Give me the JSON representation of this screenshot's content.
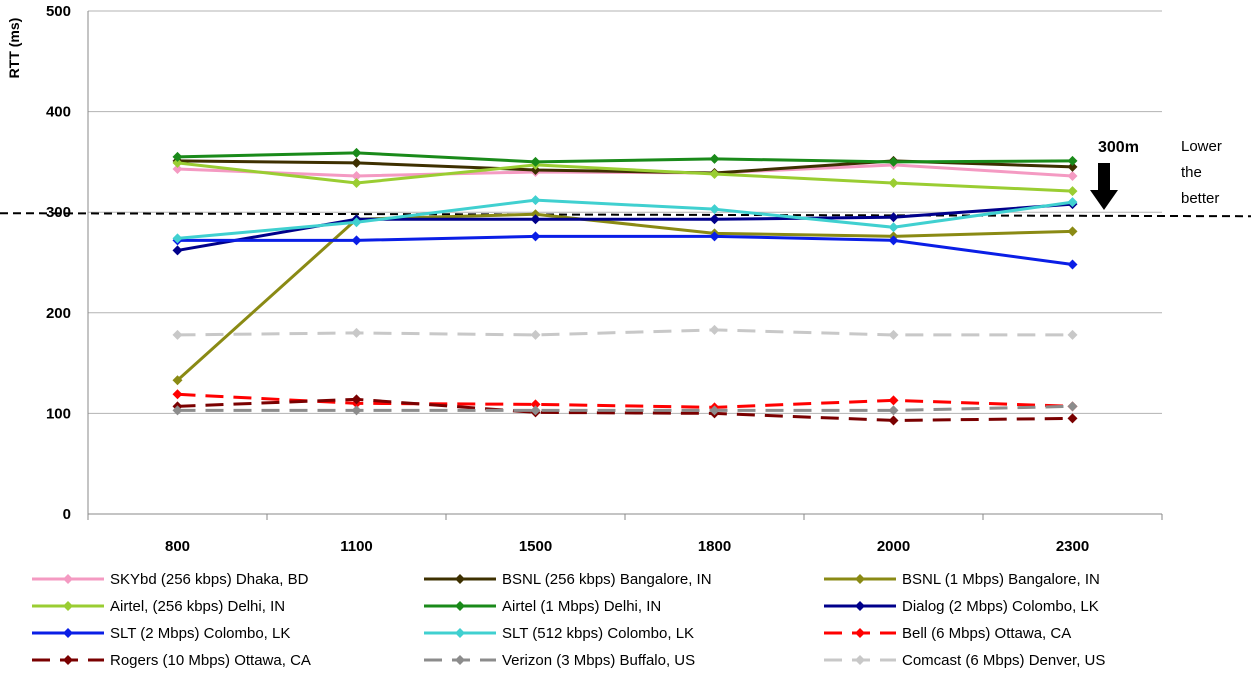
{
  "chart_data": {
    "type": "line",
    "title": "",
    "xlabel": "",
    "ylabel": "RTT (ms)",
    "ylim": [
      0,
      500
    ],
    "yticks": [
      0,
      100,
      200,
      300,
      400,
      500
    ],
    "grid": "horizontal",
    "legend_position": "bottom",
    "categories": [
      "800",
      "1100",
      "1500",
      "1800",
      "2000",
      "2300"
    ],
    "reference_line": {
      "value": 299,
      "end_value": 296,
      "label": "300m",
      "style": "dashed"
    },
    "annotation": [
      "Lower",
      "the",
      "better"
    ],
    "series": [
      {
        "name": "SKYbd (256 kbps) Dhaka, BD",
        "color": "#f49ac2",
        "dash": "solid",
        "values": [
          343,
          336,
          340,
          339,
          347,
          336
        ]
      },
      {
        "name": "BSNL (256 kbps) Bangalore, IN",
        "color": "#3d3000",
        "dash": "solid",
        "values": [
          351,
          349,
          342,
          339,
          351,
          345
        ]
      },
      {
        "name": "BSNL (1 Mbps) Bangalore, IN",
        "color": "#8a8a14",
        "dash": "solid",
        "values": [
          133,
          293,
          298,
          279,
          276,
          281
        ]
      },
      {
        "name": "Airtel, (256 kbps) Delhi, IN",
        "color": "#9acd32",
        "dash": "solid",
        "values": [
          349,
          329,
          347,
          338,
          329,
          321
        ]
      },
      {
        "name": "Airtel (1 Mbps) Delhi, IN",
        "color": "#1a8a1a",
        "dash": "solid",
        "values": [
          355,
          359,
          350,
          353,
          350,
          351
        ]
      },
      {
        "name": "Dialog (2 Mbps) Colombo, LK",
        "color": "#00008b",
        "dash": "solid",
        "values": [
          262,
          293,
          293,
          293,
          295,
          308
        ]
      },
      {
        "name": "SLT (2 Mbps) Colombo, LK",
        "color": "#0a1ee6",
        "dash": "solid",
        "values": [
          272,
          272,
          276,
          276,
          272,
          248
        ]
      },
      {
        "name": "SLT (512 kbps) Colombo, LK",
        "color": "#40d0d0",
        "dash": "solid",
        "values": [
          274,
          290,
          312,
          303,
          285,
          310
        ]
      },
      {
        "name": "Bell (6 Mbps) Ottawa, CA",
        "color": "#ff0000",
        "dash": "dashed",
        "values": [
          119,
          110,
          109,
          106,
          113,
          107
        ]
      },
      {
        "name": "Rogers (10 Mbps) Ottawa, CA",
        "color": "#7a0000",
        "dash": "dashed",
        "values": [
          107,
          114,
          101,
          100,
          93,
          95
        ]
      },
      {
        "name": "Verizon (3 Mbps) Buffalo, US",
        "color": "#8c8c8c",
        "dash": "dashed",
        "values": [
          103,
          103,
          103,
          103,
          103,
          107
        ]
      },
      {
        "name": "Comcast (6 Mbps) Denver, US",
        "color": "#c8c8c8",
        "dash": "dashed",
        "values": [
          178,
          180,
          178,
          183,
          178,
          178
        ]
      }
    ]
  }
}
